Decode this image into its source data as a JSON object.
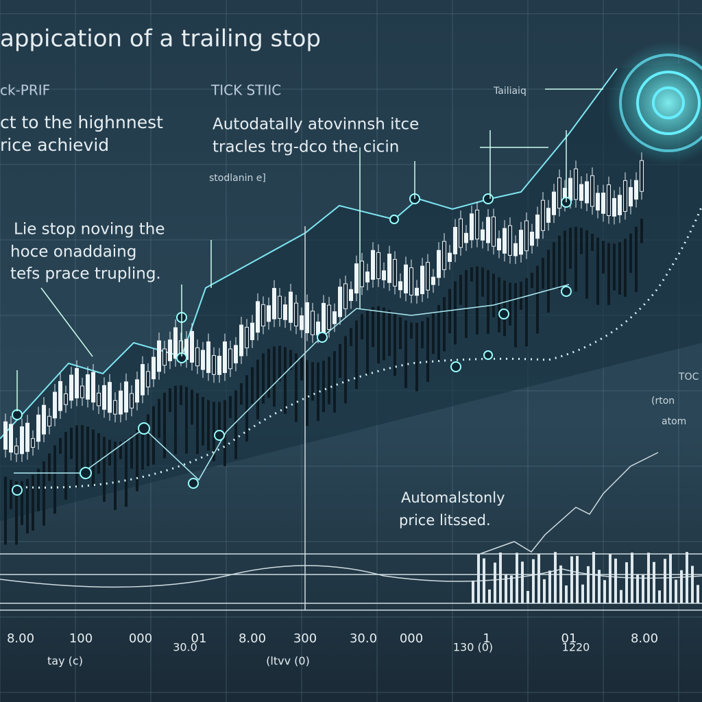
{
  "title": "appication of a trailing stop",
  "annotations": {
    "left_header": "ck-PRIF",
    "mid_header": "TICK STIIC",
    "trailing_label": "Tailiaiq",
    "left_note": [
      "ct to the highnnest",
      "rice achievid"
    ],
    "mid_note": [
      "Autodatally atovinnsh itce",
      "tracles trg-dco the cicin"
    ],
    "mid_small": "stodlanin e]",
    "stop_note": [
      "Lie stop noving the",
      "hoce onaddaing",
      "tefs prace trupling."
    ],
    "lower_note": [
      "Automalstonly",
      "price litssed."
    ],
    "right_note": [
      "TOC",
      "(rton",
      "atom"
    ]
  },
  "x_labels": [
    "8.00",
    "100",
    "000",
    "01",
    "8.00",
    "300",
    "30.0",
    "000",
    "1",
    "01",
    "8.00"
  ],
  "x_sublabels": [
    "tay (c)",
    "30.0",
    "(ltvv (0)",
    "130 (0)",
    "1220"
  ]
}
